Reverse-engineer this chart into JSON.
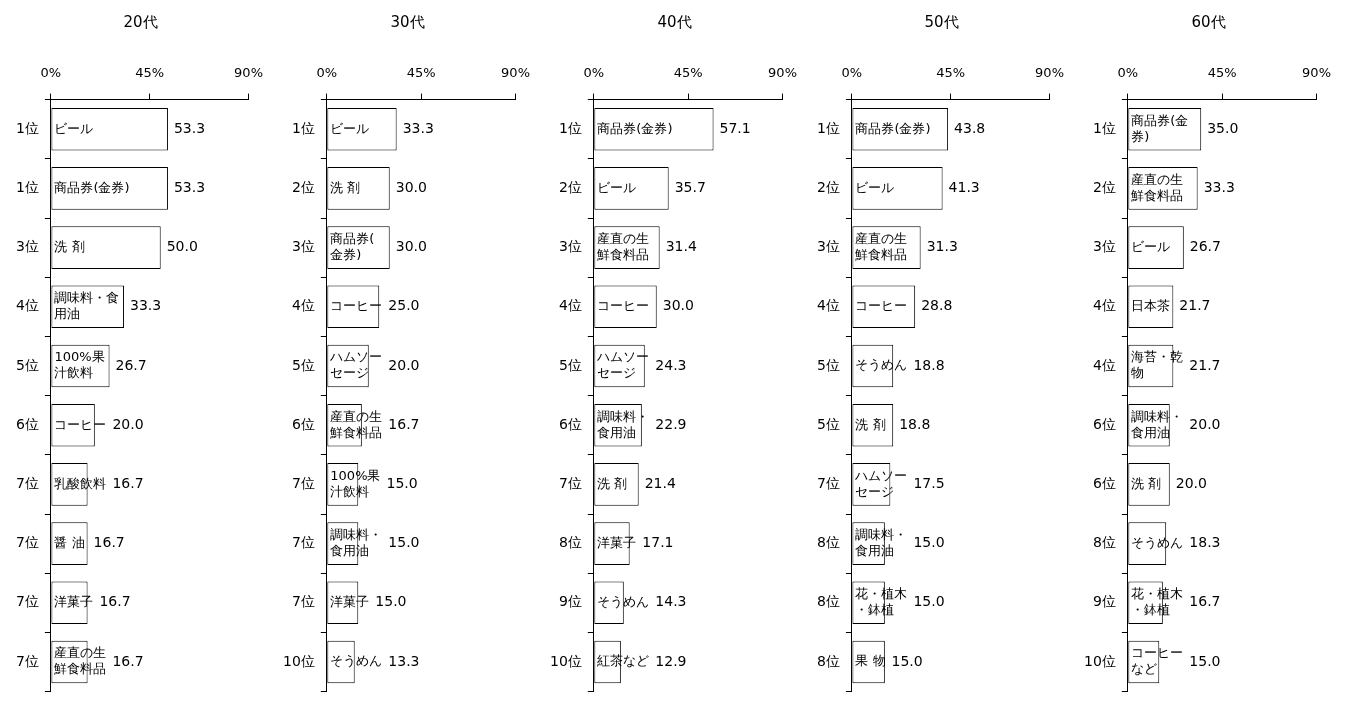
{
  "chart_data": [
    {
      "type": "bar",
      "orientation": "horizontal",
      "title": "20代",
      "color": "#ffffff",
      "xlim": [
        0,
        90
      ],
      "xticks": [
        {
          "value": 0,
          "label": "0%"
        },
        {
          "value": 45,
          "label": "45%"
        },
        {
          "value": 90,
          "label": "90%"
        }
      ],
      "categories": [
        "1位",
        "1位",
        "3位",
        "4位",
        "5位",
        "6位",
        "7位",
        "7位",
        "7位",
        "7位"
      ],
      "values": [
        53.3,
        53.3,
        50.0,
        33.3,
        26.7,
        20.0,
        16.7,
        16.7,
        16.7,
        16.7
      ],
      "value_labels": [
        "53.3",
        "53.3",
        "50.0",
        "33.3",
        "26.7",
        "20.0",
        "16.7",
        "16.7",
        "16.7",
        "16.7"
      ],
      "annotations": [
        "ビール",
        "商品券(金券)",
        "洗 剤",
        "調味料・食用油",
        "100%果汁飲料",
        "コーヒー",
        "乳酸飲料",
        "醤 油",
        "洋菓子",
        "産直の生鮮食料品"
      ]
    },
    {
      "type": "bar",
      "orientation": "horizontal",
      "title": "30代",
      "color": "#ffffff",
      "xlim": [
        0,
        90
      ],
      "xticks": [
        {
          "value": 0,
          "label": "0%"
        },
        {
          "value": 45,
          "label": "45%"
        },
        {
          "value": 90,
          "label": "90%"
        }
      ],
      "categories": [
        "1位",
        "2位",
        "3位",
        "4位",
        "5位",
        "6位",
        "7位",
        "7位",
        "7位",
        "10位"
      ],
      "values": [
        33.3,
        30.0,
        30.0,
        25.0,
        20.0,
        16.7,
        15.0,
        15.0,
        15.0,
        13.3
      ],
      "value_labels": [
        "33.3",
        "30.0",
        "30.0",
        "25.0",
        "20.0",
        "16.7",
        "15.0",
        "15.0",
        "15.0",
        "13.3"
      ],
      "annotations": [
        "ビール",
        "洗 剤",
        "商品券(金券)",
        "コーヒー",
        "ハムソーセージ",
        "産直の生鮮食料品",
        "100%果汁飲料",
        "調味料・食用油",
        "洋菓子",
        "そうめん"
      ]
    },
    {
      "type": "bar",
      "orientation": "horizontal",
      "title": "40代",
      "color": "#ffffff",
      "xlim": [
        0,
        90
      ],
      "xticks": [
        {
          "value": 0,
          "label": "0%"
        },
        {
          "value": 45,
          "label": "45%"
        },
        {
          "value": 90,
          "label": "90%"
        }
      ],
      "categories": [
        "1位",
        "2位",
        "3位",
        "4位",
        "5位",
        "6位",
        "7位",
        "8位",
        "9位",
        "10位"
      ],
      "values": [
        57.1,
        35.7,
        31.4,
        30.0,
        24.3,
        22.9,
        21.4,
        17.1,
        14.3,
        12.9
      ],
      "value_labels": [
        "57.1",
        "35.7",
        "31.4",
        "30.0",
        "24.3",
        "22.9",
        "21.4",
        "17.1",
        "14.3",
        "12.9"
      ],
      "annotations": [
        "商品券(金券)",
        "ビール",
        "産直の生鮮食料品",
        "コーヒー",
        "ハムソーセージ",
        "調味料・食用油",
        "洗 剤",
        "洋菓子",
        "そうめん",
        "紅茶など"
      ]
    },
    {
      "type": "bar",
      "orientation": "horizontal",
      "title": "50代",
      "color": "#ffffff",
      "xlim": [
        0,
        90
      ],
      "xticks": [
        {
          "value": 0,
          "label": "0%"
        },
        {
          "value": 45,
          "label": "45%"
        },
        {
          "value": 90,
          "label": "90%"
        }
      ],
      "categories": [
        "1位",
        "2位",
        "3位",
        "4位",
        "5位",
        "5位",
        "7位",
        "8位",
        "8位",
        "8位"
      ],
      "values": [
        43.8,
        41.3,
        31.3,
        28.8,
        18.8,
        18.8,
        17.5,
        15.0,
        15.0,
        15.0
      ],
      "value_labels": [
        "43.8",
        "41.3",
        "31.3",
        "28.8",
        "18.8",
        "18.8",
        "17.5",
        "15.0",
        "15.0",
        "15.0"
      ],
      "annotations": [
        "商品券(金券)",
        "ビール",
        "産直の生鮮食料品",
        "コーヒー",
        "そうめん",
        "洗 剤",
        "ハムソーセージ",
        "調味料・食用油",
        "花・植木・鉢植",
        "果 物"
      ]
    },
    {
      "type": "bar",
      "orientation": "horizontal",
      "title": "60代",
      "color": "#ffffff",
      "xlim": [
        0,
        90
      ],
      "xticks": [
        {
          "value": 0,
          "label": "0%"
        },
        {
          "value": 45,
          "label": "45%"
        },
        {
          "value": 90,
          "label": "90%"
        }
      ],
      "categories": [
        "1位",
        "2位",
        "3位",
        "4位",
        "4位",
        "6位",
        "6位",
        "8位",
        "9位",
        "10位"
      ],
      "values": [
        35.0,
        33.3,
        26.7,
        21.7,
        21.7,
        20.0,
        20.0,
        18.3,
        16.7,
        15.0
      ],
      "value_labels": [
        "35.0",
        "33.3",
        "26.7",
        "21.7",
        "21.7",
        "20.0",
        "20.0",
        "18.3",
        "16.7",
        "15.0"
      ],
      "annotations": [
        "商品券(金券)",
        "産直の生鮮食料品",
        "ビール",
        "日本茶",
        "海苔・乾物",
        "調味料・食用油",
        "洗 剤",
        "そうめん",
        "花・植木・鉢植",
        "コーヒーなど"
      ]
    }
  ]
}
